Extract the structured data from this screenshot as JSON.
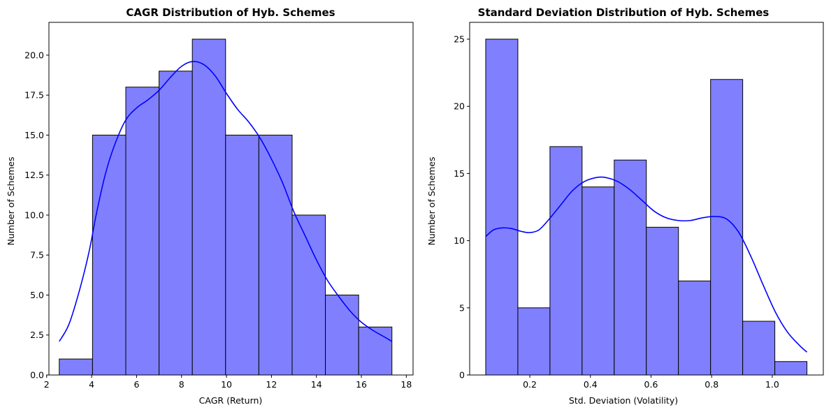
{
  "chart_data": [
    {
      "type": "bar",
      "title": "CAGR Distribution of Hyb. Schemes",
      "xlabel": "CAGR (Return)",
      "ylabel": "Number of Schemes",
      "xlim": [
        2.1,
        18.3
      ],
      "ylim": [
        0,
        22.05
      ],
      "xticks": [
        2,
        4,
        6,
        8,
        10,
        12,
        14,
        16,
        18
      ],
      "xtick_labels": [
        "2",
        "4",
        "6",
        "8",
        "10",
        "12",
        "14",
        "16",
        "18"
      ],
      "yticks": [
        0,
        2.5,
        5,
        7.5,
        10,
        12.5,
        15,
        17.5,
        20
      ],
      "ytick_labels": [
        "0.0",
        "2.5",
        "5.0",
        "7.5",
        "10.0",
        "12.5",
        "15.0",
        "17.5",
        "20.0"
      ],
      "bin_edges": [
        2.56,
        4.04,
        5.52,
        7.0,
        8.48,
        9.96,
        11.44,
        12.92,
        14.4,
        15.88,
        17.36
      ],
      "values": [
        1,
        15,
        18,
        19,
        21,
        15,
        15,
        10,
        5,
        3
      ],
      "kde": {
        "x": [
          2.56,
          3.0,
          3.5,
          3.9,
          4.2,
          4.6,
          5.0,
          5.5,
          6.0,
          6.5,
          7.0,
          7.5,
          8.0,
          8.5,
          9.0,
          9.5,
          10.0,
          10.5,
          11.0,
          11.5,
          12.0,
          12.5,
          13.0,
          13.5,
          14.0,
          14.5,
          15.0,
          15.5,
          16.0,
          16.5,
          17.0,
          17.36
        ],
        "y": [
          2.1,
          3.2,
          5.5,
          7.8,
          10.0,
          12.5,
          14.3,
          15.9,
          16.7,
          17.2,
          17.8,
          18.6,
          19.3,
          19.6,
          19.4,
          18.7,
          17.6,
          16.6,
          15.8,
          14.8,
          13.5,
          12.0,
          10.2,
          8.7,
          7.2,
          5.9,
          4.9,
          4.0,
          3.3,
          2.8,
          2.4,
          2.1
        ]
      },
      "bar_color": "#8080ff",
      "kde_color": "#0000ff",
      "grid": false
    },
    {
      "type": "bar",
      "title": "Standard Deviation Distribution of Hyb. Schemes",
      "xlabel": "Std. Deviation (Volatility)",
      "ylabel": "Number of Schemes",
      "xlim": [
        0.0015,
        1.1685
      ],
      "ylim": [
        0,
        26.25
      ],
      "xticks": [
        0.2,
        0.4,
        0.6,
        0.8,
        1.0
      ],
      "xtick_labels": [
        "0.2",
        "0.4",
        "0.6",
        "0.8",
        "1.0"
      ],
      "yticks": [
        0,
        5,
        10,
        15,
        20,
        25
      ],
      "ytick_labels": [
        "0",
        "5",
        "10",
        "15",
        "20",
        "25"
      ],
      "bin_edges": [
        0.0545,
        0.1605,
        0.2665,
        0.3725,
        0.4785,
        0.5845,
        0.6905,
        0.7965,
        0.9025,
        1.0085,
        1.1145
      ],
      "values": [
        25,
        5,
        17,
        14,
        16,
        11,
        7,
        22,
        4,
        1
      ],
      "kde": {
        "x": [
          0.0545,
          0.08,
          0.11,
          0.14,
          0.17,
          0.2,
          0.23,
          0.26,
          0.3,
          0.34,
          0.38,
          0.42,
          0.45,
          0.49,
          0.53,
          0.57,
          0.61,
          0.65,
          0.69,
          0.73,
          0.77,
          0.81,
          0.85,
          0.89,
          0.93,
          0.97,
          1.01,
          1.05,
          1.09,
          1.1145
        ],
        "y": [
          10.3,
          10.8,
          10.95,
          10.9,
          10.7,
          10.6,
          10.8,
          11.5,
          12.6,
          13.7,
          14.4,
          14.7,
          14.7,
          14.4,
          13.8,
          13.0,
          12.2,
          11.7,
          11.5,
          11.5,
          11.7,
          11.8,
          11.6,
          10.6,
          8.8,
          6.7,
          4.7,
          3.2,
          2.2,
          1.7
        ]
      },
      "bar_color": "#8080ff",
      "kde_color": "#0000ff",
      "grid": false
    }
  ]
}
